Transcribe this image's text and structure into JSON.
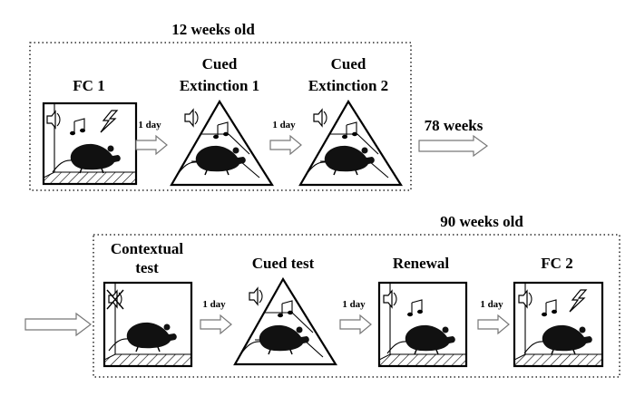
{
  "top_section": {
    "title": "12 weeks old",
    "stages": [
      {
        "label_lines": [
          "FC 1"
        ],
        "context": "square chamber",
        "icons": [
          "speaker-icon",
          "music-note-icon",
          "lightning-shock-icon"
        ]
      },
      {
        "label_lines": [
          "Cued",
          "Extinction 1"
        ],
        "context": "triangle chamber",
        "icons": [
          "speaker-icon",
          "music-note-icon"
        ]
      },
      {
        "label_lines": [
          "Cued",
          "Extinction 2"
        ],
        "context": "triangle chamber",
        "icons": [
          "speaker-icon",
          "music-note-icon"
        ]
      }
    ],
    "intervals": [
      "1 day",
      "1 day"
    ]
  },
  "gap_label": "78 weeks",
  "bottom_section": {
    "title": "90 weeks old",
    "stages": [
      {
        "label_lines": [
          "Contextual",
          "test"
        ],
        "context": "square chamber",
        "icons": [
          "muted-speaker-icon"
        ]
      },
      {
        "label_lines": [
          "Cued test"
        ],
        "context": "triangle chamber",
        "icons": [
          "speaker-icon",
          "music-note-icon"
        ]
      },
      {
        "label_lines": [
          "Renewal"
        ],
        "context": "square chamber",
        "icons": [
          "speaker-icon",
          "music-note-icon"
        ]
      },
      {
        "label_lines": [
          "FC 2"
        ],
        "context": "square chamber",
        "icons": [
          "speaker-icon",
          "music-note-icon",
          "lightning-shock-icon"
        ]
      }
    ],
    "intervals": [
      "1 day",
      "1 day",
      "1 day"
    ]
  }
}
